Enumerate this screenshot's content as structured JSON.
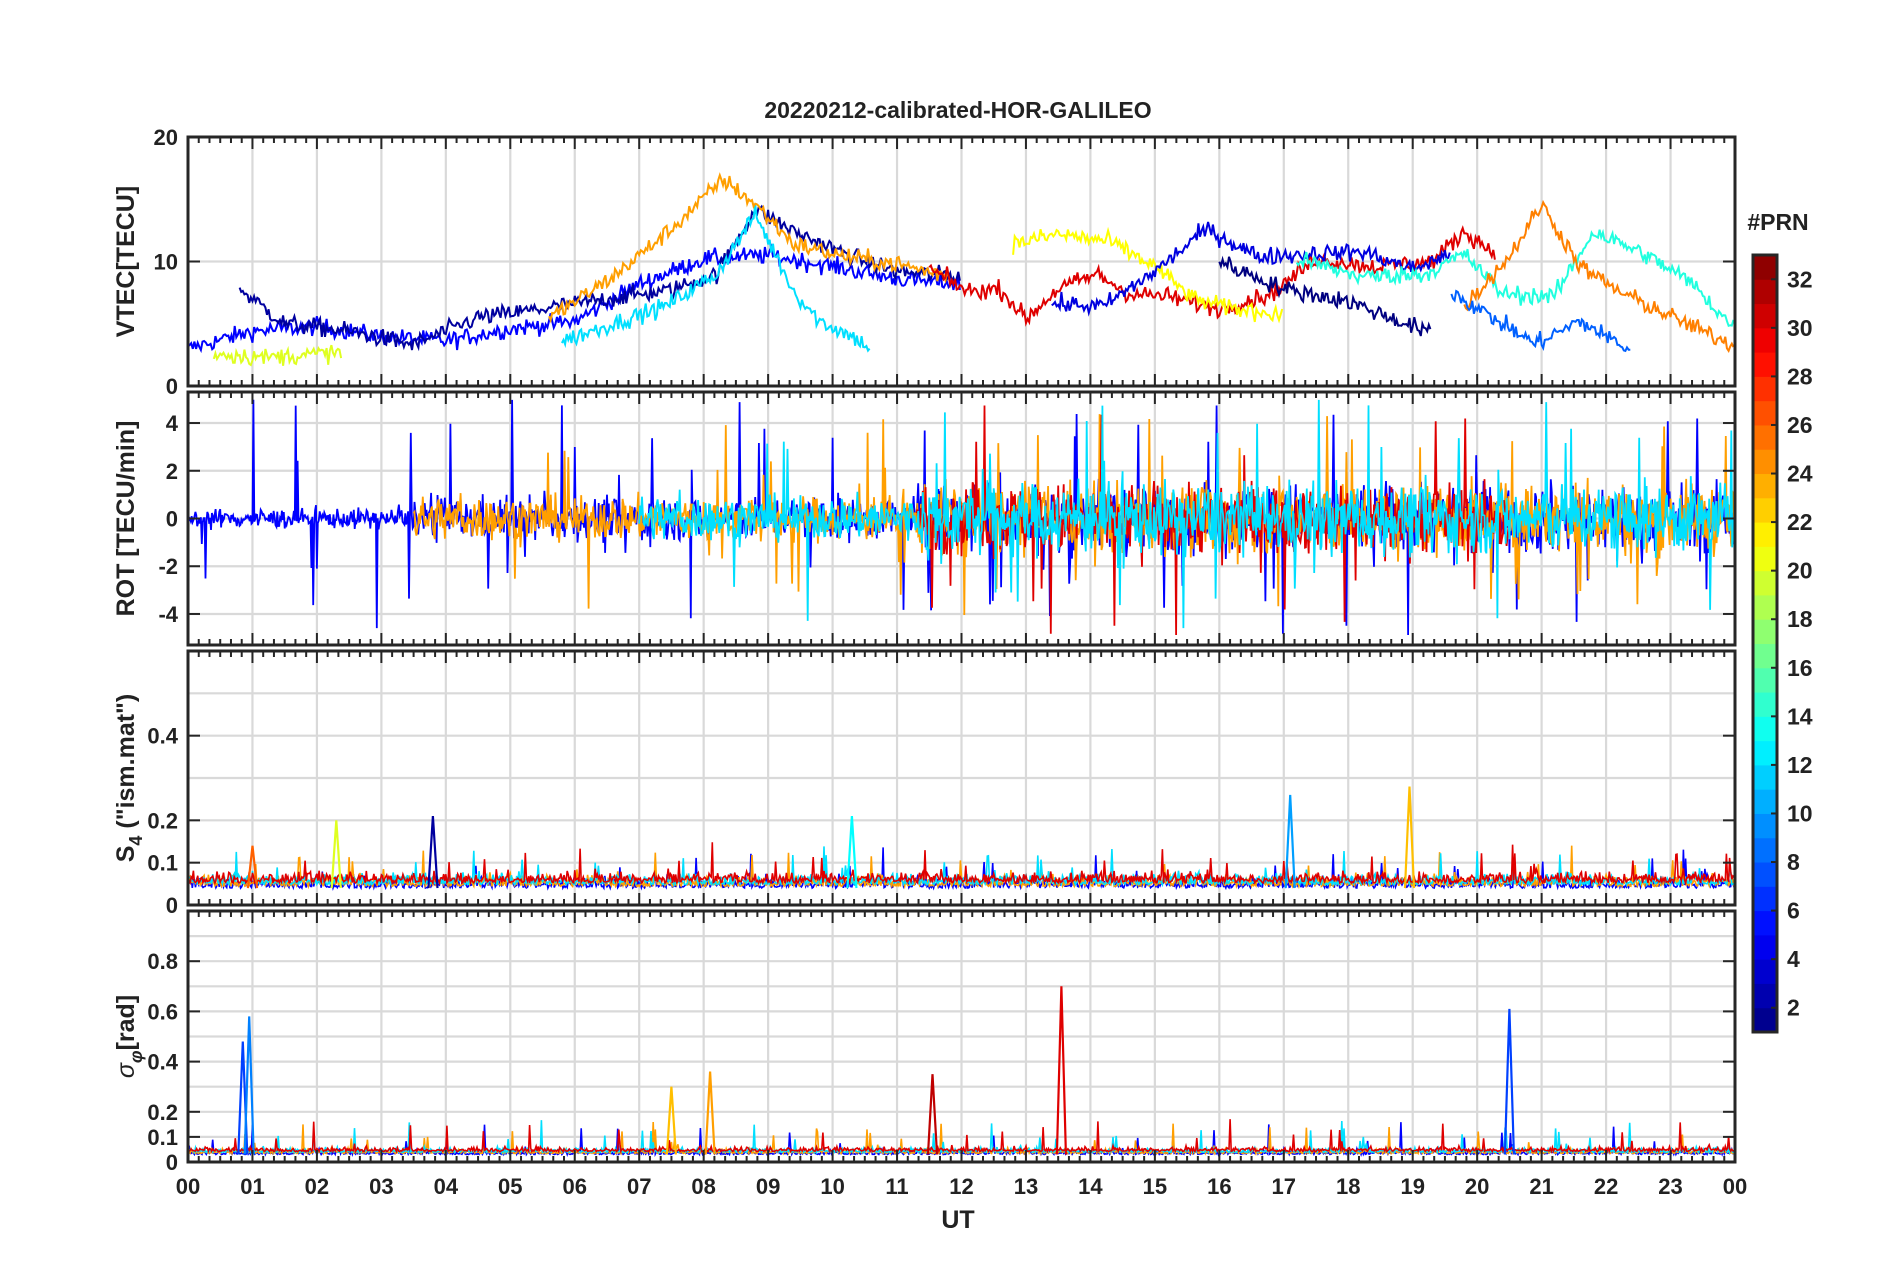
{
  "title": "20220212-calibrated-HOR-GALILEO",
  "chart_data": {
    "type": "line",
    "title": "20220212-calibrated-HOR-GALILEO",
    "xlabel": "UT",
    "x_tick_labels": [
      "00",
      "01",
      "02",
      "03",
      "04",
      "05",
      "06",
      "07",
      "08",
      "09",
      "10",
      "11",
      "12",
      "13",
      "14",
      "15",
      "16",
      "17",
      "18",
      "19",
      "20",
      "21",
      "22",
      "23",
      "00"
    ],
    "x_range_hours": [
      0,
      24
    ],
    "colorbar": {
      "label": "#PRN",
      "range": [
        1,
        33
      ],
      "tick_values": [
        2,
        4,
        6,
        8,
        10,
        12,
        14,
        16,
        18,
        20,
        22,
        24,
        26,
        28,
        30,
        32
      ],
      "tick_labels": [
        "2",
        "4",
        "6",
        "8",
        "10",
        "12",
        "14",
        "16",
        "18",
        "20",
        "22",
        "24",
        "26",
        "28",
        "30",
        "32"
      ],
      "colormap": "jet",
      "levels": 32
    },
    "panels": [
      {
        "id": "vtec",
        "ylabel": "VTEC[TECU]",
        "ylim": [
          0,
          20
        ],
        "yticks": [
          0,
          10,
          20
        ],
        "ytick_labels": [
          "0",
          "10",
          "20"
        ],
        "grid_y": [
          0,
          10,
          20
        ],
        "series": [
          {
            "prn": 5,
            "points": [
              [
                0,
                3.0
              ],
              [
                1,
                4.4
              ],
              [
                2,
                4.8
              ],
              [
                3,
                4.0
              ],
              [
                4,
                3.6
              ],
              [
                5,
                4.6
              ],
              [
                6,
                5.2
              ],
              [
                7,
                8.2
              ],
              [
                8,
                10.2
              ],
              [
                9,
                10.5
              ],
              [
                10,
                9.6
              ],
              [
                11,
                8.6
              ],
              [
                12,
                8.2
              ]
            ]
          },
          {
            "prn": 2,
            "points": [
              [
                0.8,
                7.8
              ],
              [
                1.5,
                5.0
              ],
              [
                2.5,
                4.4
              ],
              [
                3.5,
                3.3
              ],
              [
                4.5,
                5.5
              ],
              [
                5.5,
                6.2
              ],
              [
                6.5,
                7.0
              ],
              [
                7.5,
                7.7
              ],
              [
                8.2,
                9.0
              ],
              [
                8.8,
                14.2
              ],
              [
                9.4,
                12.4
              ],
              [
                10.2,
                10.6
              ],
              [
                11,
                9.2
              ],
              [
                12,
                8.8
              ]
            ]
          },
          {
            "prn": 12,
            "points": [
              [
                5.8,
                3.6
              ],
              [
                6.6,
                5.0
              ],
              [
                7.4,
                6.4
              ],
              [
                8.2,
                9.0
              ],
              [
                8.8,
                13.8
              ],
              [
                9.4,
                7.6
              ],
              [
                9.8,
                5.2
              ],
              [
                10.3,
                4.0
              ],
              [
                10.6,
                3.0
              ]
            ]
          },
          {
            "prn": 24,
            "points": [
              [
                5.6,
                5.4
              ],
              [
                6.6,
                8.8
              ],
              [
                7.5,
                12.6
              ],
              [
                8.3,
                16.6
              ],
              [
                8.8,
                14.6
              ],
              [
                9.4,
                11.4
              ],
              [
                10.2,
                10.4
              ],
              [
                11,
                9.8
              ],
              [
                11.8,
                8.8
              ]
            ]
          },
          {
            "prn": 20,
            "points": [
              [
                0.4,
                2.6
              ],
              [
                1.2,
                2.3
              ],
              [
                2.4,
                2.7
              ]
            ]
          },
          {
            "prn": 30,
            "points": [
              [
                11.5,
                9.4
              ],
              [
                12.1,
                7.6
              ],
              [
                12.6,
                7.8
              ],
              [
                13.0,
                5.4
              ],
              [
                13.5,
                7.8
              ],
              [
                14.1,
                9.0
              ],
              [
                14.6,
                7.4
              ],
              [
                15.2,
                7.2
              ],
              [
                16,
                6.2
              ],
              [
                16.8,
                7.4
              ],
              [
                17.5,
                10.2
              ],
              [
                18.4,
                9.6
              ],
              [
                19.3,
                10.0
              ],
              [
                19.8,
                12.4
              ],
              [
                20.3,
                10.6
              ]
            ]
          },
          {
            "prn": 21,
            "points": [
              [
                12.8,
                11.4
              ],
              [
                13.5,
                12.2
              ],
              [
                14.3,
                11.6
              ],
              [
                15.0,
                9.6
              ],
              [
                15.6,
                7.0
              ],
              [
                16.2,
                6.2
              ],
              [
                17.0,
                5.8
              ]
            ]
          },
          {
            "prn": 4,
            "points": [
              [
                13.4,
                6.6
              ],
              [
                14.2,
                6.4
              ],
              [
                15.0,
                9.2
              ],
              [
                15.8,
                12.6
              ],
              [
                16.6,
                10.4
              ],
              [
                17.4,
                10.6
              ],
              [
                18.2,
                10.8
              ],
              [
                19.0,
                9.4
              ],
              [
                19.6,
                10.6
              ]
            ]
          },
          {
            "prn": 14,
            "points": [
              [
                17.2,
                10.2
              ],
              [
                18.2,
                8.8
              ],
              [
                19.2,
                9.0
              ],
              [
                19.8,
                10.6
              ],
              [
                20.4,
                7.4
              ],
              [
                21.2,
                7.2
              ],
              [
                21.8,
                12.4
              ],
              [
                22.6,
                10.6
              ],
              [
                23.3,
                8.4
              ],
              [
                24,
                4.6
              ]
            ]
          },
          {
            "prn": 25,
            "points": [
              [
                19.8,
                6.4
              ],
              [
                20.5,
                10.4
              ],
              [
                21.0,
                14.6
              ],
              [
                21.6,
                9.6
              ],
              [
                22.2,
                7.6
              ],
              [
                23.0,
                5.6
              ],
              [
                24,
                3.2
              ]
            ]
          },
          {
            "prn": 8,
            "points": [
              [
                19.6,
                7.6
              ],
              [
                20.2,
                5.6
              ],
              [
                20.9,
                3.4
              ],
              [
                21.6,
                5.2
              ],
              [
                22.4,
                2.8
              ]
            ]
          },
          {
            "prn": 1,
            "points": [
              [
                16.0,
                10.0
              ],
              [
                17.0,
                7.8
              ],
              [
                18.0,
                6.8
              ],
              [
                18.6,
                5.6
              ],
              [
                19.3,
                4.2
              ]
            ]
          }
        ]
      },
      {
        "id": "rot",
        "ylabel": "ROT [TECU/min]",
        "ylim": [
          -5.3,
          5.3
        ],
        "yticks": [
          -4,
          -2,
          0,
          2,
          4
        ],
        "ytick_labels": [
          "-4",
          "-2",
          "0",
          "2",
          "4"
        ],
        "grid_y": [
          -4,
          -2,
          0,
          2,
          4
        ],
        "series_summary": [
          {
            "prn": 5,
            "hours": [
              0,
              24
            ],
            "max_amplitude": 5.0
          },
          {
            "prn": 24,
            "hours": [
              3.5,
              24
            ],
            "max_amplitude": 4.4
          },
          {
            "prn": 30,
            "hours": [
              11.3,
              20.5
            ],
            "max_amplitude": 5.0
          },
          {
            "prn": 12,
            "hours": [
              7,
              24
            ],
            "max_amplitude": 5.0
          }
        ]
      },
      {
        "id": "s4",
        "ylabel": "S4 (\"ism.mat\")",
        "ylabel_main": "S",
        "ylabel_sub": "4",
        "ylabel_rest": " (\"ism.mat\")",
        "ylim": [
          0,
          0.6
        ],
        "yticks": [
          0,
          0.1,
          0.2,
          0.4
        ],
        "ytick_labels": [
          "0",
          "0.1",
          "0.2",
          "0.4"
        ],
        "grid_y": [
          0.1,
          0.2,
          0.3,
          0.4,
          0.5
        ],
        "peaks": [
          {
            "prn": 20,
            "hour": 2.3,
            "value": 0.2
          },
          {
            "prn": 2,
            "hour": 3.8,
            "value": 0.21
          },
          {
            "prn": 13,
            "hour": 10.3,
            "value": 0.21
          },
          {
            "prn": 10,
            "hour": 17.1,
            "value": 0.26
          },
          {
            "prn": 23,
            "hour": 18.95,
            "value": 0.28
          },
          {
            "prn": 26,
            "hour": 1.0,
            "value": 0.14
          }
        ]
      },
      {
        "id": "sigma",
        "ylabel": "σφ[rad]",
        "ylabel_main": "σ",
        "ylabel_sub": "φ",
        "ylabel_rest": "[rad]",
        "ylim": [
          0,
          1.0
        ],
        "yticks": [
          0,
          0.1,
          0.2,
          0.4,
          0.6,
          0.8
        ],
        "ytick_labels": [
          "0",
          "0.1",
          "0.2",
          "0.4",
          "0.6",
          "0.8"
        ],
        "grid_y": [
          0.1,
          0.2,
          0.3,
          0.4,
          0.5,
          0.6,
          0.7,
          0.8,
          0.9
        ],
        "peaks": [
          {
            "prn": 7,
            "hour": 0.85,
            "value": 0.48
          },
          {
            "prn": 9,
            "hour": 0.95,
            "value": 0.58
          },
          {
            "prn": 23,
            "hour": 7.5,
            "value": 0.3
          },
          {
            "prn": 24,
            "hour": 8.1,
            "value": 0.36
          },
          {
            "prn": 31,
            "hour": 11.55,
            "value": 0.35
          },
          {
            "prn": 30,
            "hour": 13.55,
            "value": 0.7
          },
          {
            "prn": 7,
            "hour": 20.5,
            "value": 0.61
          }
        ]
      }
    ]
  }
}
